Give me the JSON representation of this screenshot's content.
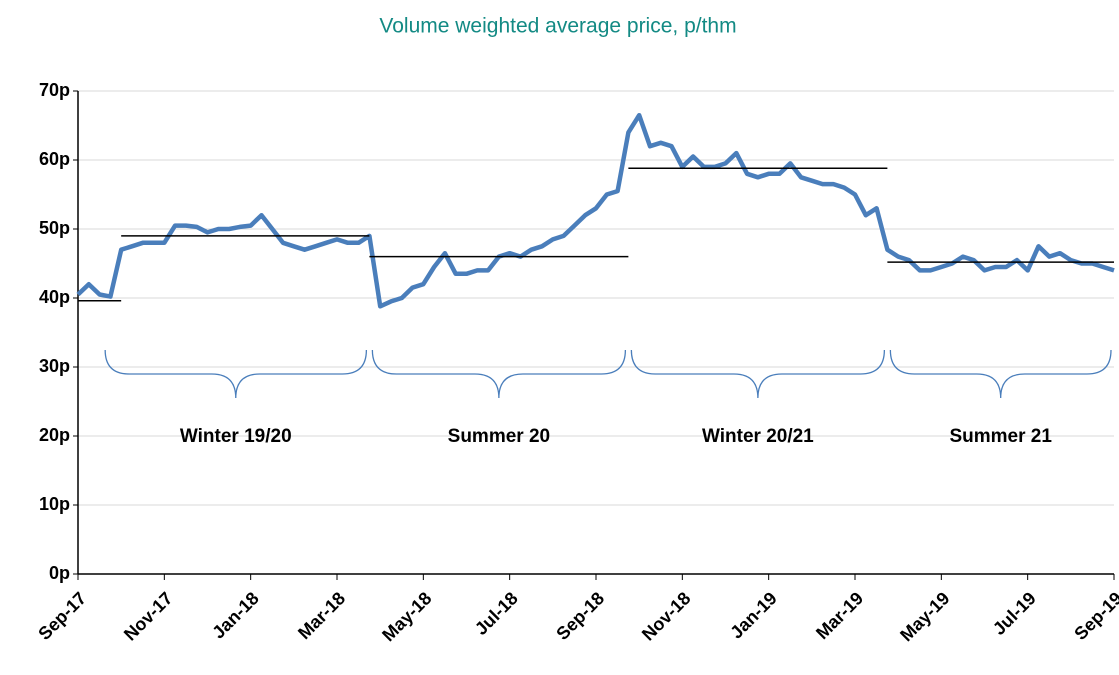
{
  "chart_data": {
    "type": "line",
    "title": "Volume weighted average price, p/thm",
    "categories": [
      "Sep-17",
      null,
      null,
      null,
      null,
      null,
      null,
      null,
      "Nov-17",
      null,
      null,
      null,
      null,
      null,
      null,
      null,
      "Jan-18",
      null,
      null,
      null,
      null,
      null,
      null,
      null,
      "Mar-18",
      null,
      null,
      null,
      null,
      null,
      null,
      null,
      "May-18",
      null,
      null,
      null,
      null,
      null,
      null,
      null,
      "Jul-18",
      null,
      null,
      null,
      null,
      null,
      null,
      null,
      "Sep-18",
      null,
      null,
      null,
      null,
      null,
      null,
      null,
      "Nov-18",
      null,
      null,
      null,
      null,
      null,
      null,
      null,
      "Jan-19",
      null,
      null,
      null,
      null,
      null,
      null,
      null,
      "Mar-19",
      null,
      null,
      null,
      null,
      null,
      null,
      null,
      "May-19",
      null,
      null,
      null,
      null,
      null,
      null,
      null,
      "Jul-19",
      null,
      null,
      null,
      null,
      null,
      null,
      null,
      "Sep-19"
    ],
    "series": [
      {
        "color": "#4a7ebb",
        "values": [
          40.5,
          42,
          40.5,
          40.2,
          47,
          47.5,
          48,
          48,
          48,
          50.5,
          50.5,
          50.3,
          49.5,
          50,
          50,
          50.3,
          50.5,
          52,
          50,
          48,
          47.5,
          47,
          47.5,
          48,
          48.5,
          48,
          48,
          49,
          38.8,
          39.5,
          40,
          41.5,
          42,
          44.5,
          46.5,
          43.5,
          43.5,
          44,
          44,
          46,
          46.5,
          46,
          47,
          47.5,
          48.5,
          49,
          50.5,
          52,
          53,
          55,
          55.5,
          64,
          66.5,
          62,
          62.5,
          62,
          59,
          60.5,
          59,
          59,
          59.5,
          61,
          58,
          57.5,
          58,
          58,
          59.5,
          57.5,
          57,
          56.5,
          56.5,
          56,
          55,
          52,
          53,
          47,
          46,
          45.5,
          44,
          44,
          44.5,
          45,
          46,
          45.5,
          44,
          44.5,
          44.5,
          45.5,
          44,
          47.5,
          46,
          46.5,
          45.5,
          45,
          45,
          44.5,
          44
        ]
      }
    ],
    "average_lines": {
      "color": "#000000",
      "segments": [
        {
          "value": 39.6,
          "from": 0,
          "to": 4
        },
        {
          "value": 49,
          "from": 4,
          "to": 27,
          "label": "Winter 19/20"
        },
        {
          "value": 46,
          "from": 27,
          "to": 51,
          "label": "Summer 20"
        },
        {
          "value": 58.8,
          "from": 51,
          "to": 75,
          "label": "Winter 20/21"
        },
        {
          "value": 45.2,
          "from": 75,
          "to": 96,
          "label": "Summer 21"
        }
      ]
    },
    "ylim": [
      0,
      70
    ],
    "yticks": [
      {
        "value": 0,
        "label": "0p"
      },
      {
        "value": 10,
        "label": "10p"
      },
      {
        "value": 20,
        "label": "20p"
      },
      {
        "value": 30,
        "label": "30p"
      },
      {
        "value": 40,
        "label": "40p"
      },
      {
        "value": 50,
        "label": "50p"
      },
      {
        "value": 60,
        "label": "60p"
      },
      {
        "value": 70,
        "label": "70p"
      }
    ],
    "grid": true
  }
}
